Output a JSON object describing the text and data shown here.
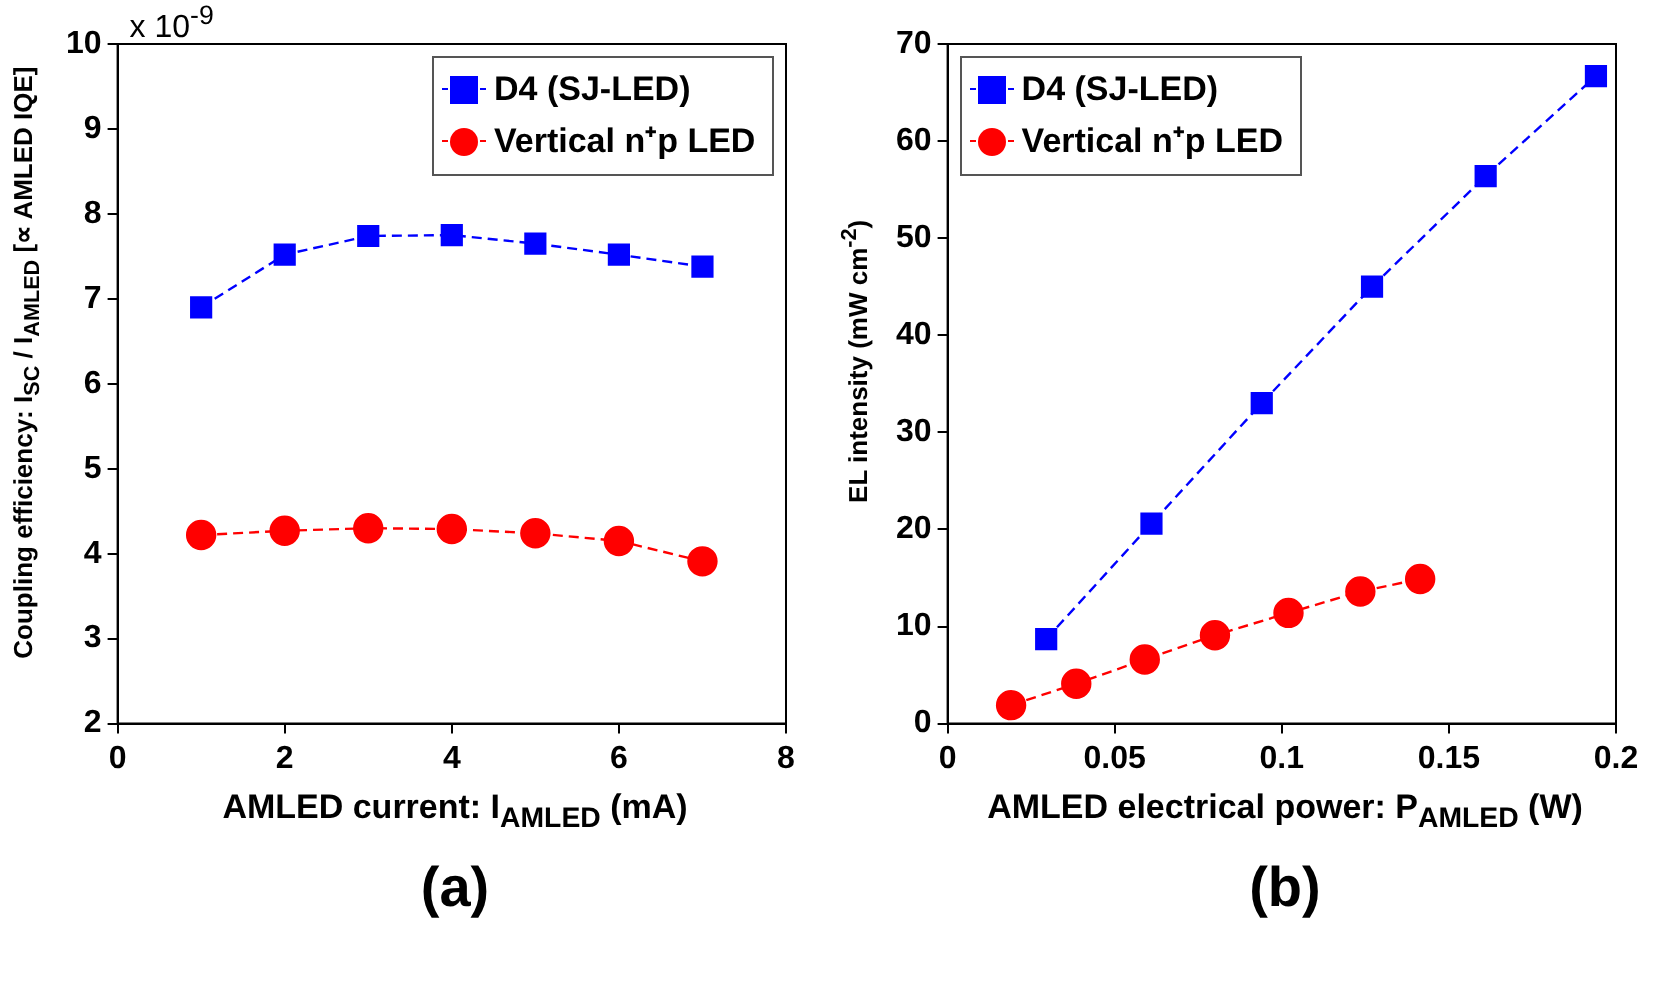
{
  "chart_data": [
    {
      "type": "line",
      "title": "(a)",
      "xlabel": "AMLED current: I$_{AMLED}$ (mA)",
      "ylabel": "Coupling efficiency: I$_{SC}$ / I$_{AMLED}$ [∝ AMLED IQE]",
      "annotations": [
        "x 10$^{-9}$"
      ],
      "x": [
        1,
        2,
        3,
        4,
        5,
        6,
        7
      ],
      "series": [
        {
          "name": "D4 (SJ-LED)",
          "color": "#0000ff",
          "marker": "square",
          "values": [
            6.9,
            7.52,
            7.74,
            7.75,
            7.65,
            7.52,
            7.38
          ]
        },
        {
          "name": "Vertical n⁺p LED",
          "color": "#ff0000",
          "marker": "circle",
          "values": [
            4.22,
            4.27,
            4.3,
            4.29,
            4.24,
            4.15,
            3.91
          ]
        }
      ],
      "xlim": [
        0,
        8
      ],
      "xticks": [
        0,
        2,
        4,
        6,
        8
      ],
      "ylim": [
        2,
        10
      ],
      "yticks": [
        2,
        3,
        4,
        5,
        6,
        7,
        8,
        9,
        10
      ],
      "grid": false,
      "legend": "top right",
      "line_style": "dashed"
    },
    {
      "type": "line",
      "title": "(b)",
      "xlabel": "AMLED electrical power: P$_{AMLED}$ (W)",
      "ylabel": "EL intensity (mW cm$^{-2}$)",
      "series": [
        {
          "name": "D4 (SJ-LED)",
          "color": "#0000ff",
          "marker": "square",
          "x": [
            0.0295,
            0.061,
            0.094,
            0.127,
            0.161,
            0.194
          ],
          "values": [
            8.7,
            20.6,
            33.0,
            45.0,
            56.4,
            66.7
          ]
        },
        {
          "name": "Vertical n⁺p LED",
          "color": "#ff0000",
          "marker": "circle",
          "x": [
            0.019,
            0.0385,
            0.059,
            0.08,
            0.102,
            0.1235,
            0.1414
          ],
          "values": [
            1.9,
            4.1,
            6.6,
            9.1,
            11.4,
            13.6,
            14.9
          ]
        }
      ],
      "xlim": [
        0,
        0.2
      ],
      "xticks": [
        0,
        0.05,
        0.1,
        0.15,
        0.2
      ],
      "ylim": [
        0,
        70
      ],
      "yticks": [
        0,
        10,
        20,
        30,
        40,
        50,
        60,
        70
      ],
      "grid": false,
      "legend": "top left",
      "line_style": "dashed"
    }
  ]
}
